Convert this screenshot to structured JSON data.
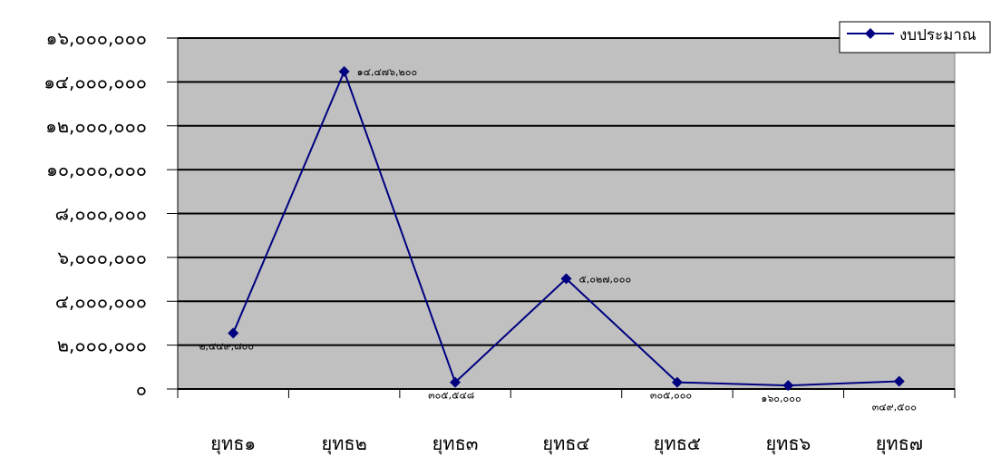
{
  "chart_data": {
    "type": "line",
    "categories": [
      "ยุทธ๑",
      "ยุทธ๒",
      "ยุทธ๓",
      "ยุทธ๔",
      "ยุทธ๕",
      "ยุทธ๖",
      "ยุทธ๗"
    ],
    "series": [
      {
        "name": "งบประมาณ",
        "values": [
          2549800,
          14476200,
          305548,
          5027000,
          305000,
          160000,
          349500
        ],
        "data_labels": [
          "๒,๕๔๙,๘๐๐",
          "๑๔,๔๗๖,๒๐๐",
          "๓๐๕,๕๔๘",
          "๕,๐๒๗,๐๐๐",
          "๓๐๕,๐๐๐",
          "๑๖๐,๐๐๐",
          "๓๔๙,๕๐๐"
        ]
      }
    ],
    "ylim": [
      0,
      16000000
    ],
    "yticks": [
      0,
      2000000,
      4000000,
      6000000,
      8000000,
      10000000,
      12000000,
      14000000,
      16000000
    ],
    "ytick_labels": [
      "๐",
      "๒,๐๐๐,๐๐๐",
      "๔,๐๐๐,๐๐๐",
      "๖,๐๐๐,๐๐๐",
      "๘,๐๐๐,๐๐๐",
      "๑๐,๐๐๐,๐๐๐",
      "๑๒,๐๐๐,๐๐๐",
      "๑๔,๐๐๐,๐๐๐",
      "๑๖,๐๐๐,๐๐๐"
    ],
    "grid": true,
    "legend": "top-right",
    "colors": {
      "line": "#000080",
      "plot_bg": "#c0c0c0",
      "grid": "#000000"
    }
  }
}
